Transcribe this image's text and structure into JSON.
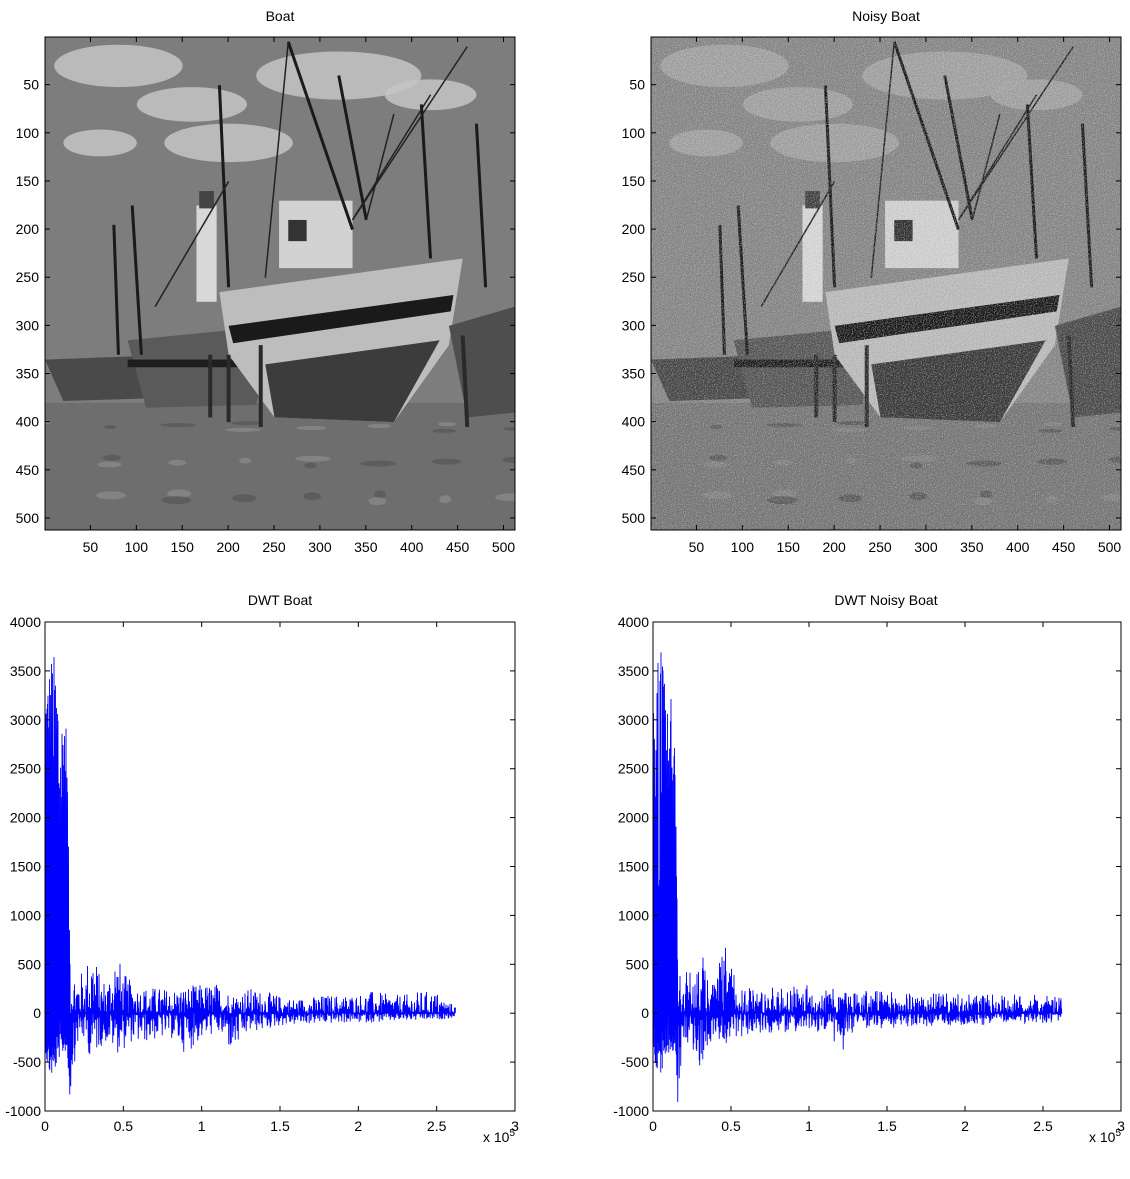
{
  "figure": {
    "background": "#ffffff",
    "line_color": "#0000ff"
  },
  "chart_data": [
    {
      "type": "image",
      "title": "Boat",
      "image_content": "grayscale photograph of fishing boats beached on sand with a lighthouse and clouds behind",
      "xlim": [
        0.5,
        512.5
      ],
      "ylim": [
        0.5,
        512.5
      ],
      "y_reversed": true,
      "xticks": [
        50,
        100,
        150,
        200,
        250,
        300,
        350,
        400,
        450,
        500
      ],
      "yticks": [
        50,
        100,
        150,
        200,
        250,
        300,
        350,
        400,
        450,
        500
      ],
      "noise": false
    },
    {
      "type": "image",
      "title": "Noisy Boat",
      "image_content": "the same boat photograph with heavy grain noise added",
      "xlim": [
        0.5,
        512.5
      ],
      "ylim": [
        0.5,
        512.5
      ],
      "y_reversed": true,
      "xticks": [
        50,
        100,
        150,
        200,
        250,
        300,
        350,
        400,
        450,
        500
      ],
      "yticks": [
        50,
        100,
        150,
        200,
        250,
        300,
        350,
        400,
        450,
        500
      ],
      "noise": true
    },
    {
      "type": "line",
      "title": "DWT Boat",
      "xlim": [
        0,
        3
      ],
      "ylim": [
        -1000,
        4000
      ],
      "x_multiplier_label": {
        "base": "x 10",
        "exponent": "5"
      },
      "xticks": [
        "0",
        "0.5",
        "1",
        "1.5",
        "2",
        "2.5",
        "3"
      ],
      "yticks": [
        "-1000",
        "-500",
        "0",
        "500",
        "1000",
        "1500",
        "2000",
        "2500",
        "3000",
        "3500",
        "4000"
      ],
      "series": [
        {
          "x_end": 2.62,
          "envelope_points": [
            [
              0.0,
              -350,
              3500
            ],
            [
              0.02,
              -600,
              3520
            ],
            [
              0.05,
              -650,
              3740
            ],
            [
              0.08,
              -500,
              3480
            ],
            [
              0.1,
              -420,
              2860
            ],
            [
              0.12,
              -400,
              3390
            ],
            [
              0.14,
              -380,
              2850
            ],
            [
              0.16,
              -930,
              560
            ],
            [
              0.2,
              -350,
              460
            ],
            [
              0.25,
              -300,
              420
            ],
            [
              0.3,
              -500,
              780
            ],
            [
              0.35,
              -350,
              380
            ],
            [
              0.4,
              -300,
              360
            ],
            [
              0.45,
              -420,
              700
            ],
            [
              0.5,
              -380,
              420
            ],
            [
              0.55,
              -300,
              330
            ],
            [
              0.6,
              -320,
              280
            ],
            [
              0.7,
              -280,
              270
            ],
            [
              0.8,
              -250,
              250
            ],
            [
              0.9,
              -420,
              280
            ],
            [
              1.0,
              -270,
              300
            ],
            [
              1.1,
              -200,
              310
            ],
            [
              1.2,
              -430,
              200
            ],
            [
              1.3,
              -200,
              260
            ],
            [
              1.4,
              -180,
              230
            ],
            [
              1.5,
              -130,
              180
            ],
            [
              1.6,
              -120,
              150
            ],
            [
              1.7,
              -110,
              170
            ],
            [
              1.8,
              -110,
              190
            ],
            [
              1.9,
              -100,
              190
            ],
            [
              2.0,
              -100,
              200
            ],
            [
              2.1,
              -95,
              230
            ],
            [
              2.2,
              -90,
              190
            ],
            [
              2.3,
              -80,
              190
            ],
            [
              2.4,
              -80,
              230
            ],
            [
              2.5,
              -70,
              220
            ],
            [
              2.55,
              -60,
              140
            ],
            [
              2.62,
              -50,
              80
            ]
          ]
        }
      ]
    },
    {
      "type": "line",
      "title": "DWT Noisy Boat",
      "xlim": [
        0,
        3
      ],
      "ylim": [
        -1000,
        4000
      ],
      "x_multiplier_label": {
        "base": "x 10",
        "exponent": "5"
      },
      "xticks": [
        "0",
        "0.5",
        "1",
        "1.5",
        "2",
        "2.5",
        "3"
      ],
      "yticks": [
        "-1000",
        "-500",
        "0",
        "500",
        "1000",
        "1500",
        "2000",
        "2500",
        "3000",
        "3500",
        "4000"
      ],
      "series": [
        {
          "x_end": 2.62,
          "envelope_points": [
            [
              0.0,
              -350,
              3380
            ],
            [
              0.02,
              -600,
              3500
            ],
            [
              0.05,
              -650,
              3760
            ],
            [
              0.08,
              -500,
              3480
            ],
            [
              0.1,
              -420,
              2860
            ],
            [
              0.12,
              -400,
              3330
            ],
            [
              0.14,
              -380,
              2860
            ],
            [
              0.16,
              -950,
              550
            ],
            [
              0.2,
              -400,
              480
            ],
            [
              0.25,
              -380,
              400
            ],
            [
              0.3,
              -560,
              730
            ],
            [
              0.35,
              -350,
              380
            ],
            [
              0.4,
              -280,
              360
            ],
            [
              0.45,
              -330,
              720
            ],
            [
              0.5,
              -300,
              580
            ],
            [
              0.55,
              -280,
              350
            ],
            [
              0.6,
              -220,
              300
            ],
            [
              0.7,
              -200,
              270
            ],
            [
              0.8,
              -200,
              260
            ],
            [
              0.9,
              -220,
              270
            ],
            [
              1.0,
              -200,
              300
            ],
            [
              1.1,
              -180,
              260
            ],
            [
              1.2,
              -470,
              240
            ],
            [
              1.3,
              -170,
              250
            ],
            [
              1.4,
              -160,
              240
            ],
            [
              1.5,
              -150,
              230
            ],
            [
              1.6,
              -150,
              210
            ],
            [
              1.7,
              -140,
              200
            ],
            [
              1.8,
              -130,
              210
            ],
            [
              1.9,
              -130,
              200
            ],
            [
              2.0,
              -120,
              190
            ],
            [
              2.1,
              -120,
              200
            ],
            [
              2.2,
              -110,
              190
            ],
            [
              2.3,
              -110,
              190
            ],
            [
              2.4,
              -110,
              200
            ],
            [
              2.5,
              -100,
              180
            ],
            [
              2.62,
              -95,
              160
            ]
          ]
        }
      ]
    }
  ]
}
